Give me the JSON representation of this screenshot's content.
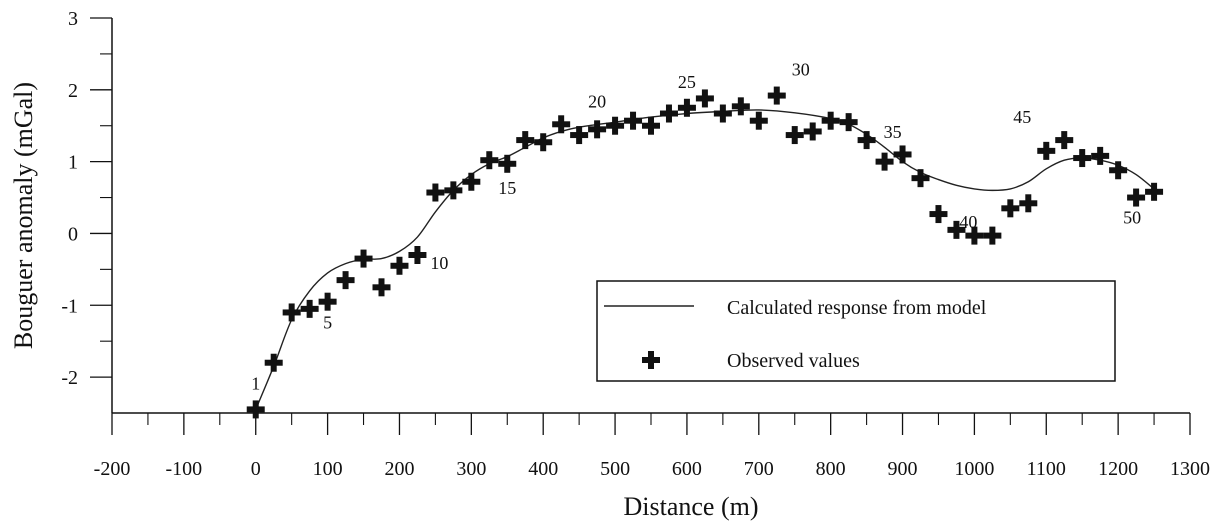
{
  "chart_data": {
    "type": "scatter",
    "xlabel": "Distance (m)",
    "ylabel": "Bouguer anomaly (mGal)",
    "xlim": [
      -200,
      1300
    ],
    "ylim": [
      -2.5,
      3
    ],
    "x_ticks": [
      "-200",
      "-100",
      "0",
      "100",
      "200",
      "300",
      "400",
      "500",
      "600",
      "700",
      "800",
      "900",
      "1000",
      "1100",
      "1200",
      "1300"
    ],
    "y_ticks": [
      "-2",
      "-1",
      "0",
      "1",
      "2",
      "3"
    ],
    "x_tick_values": [
      -200,
      -100,
      0,
      100,
      200,
      300,
      400,
      500,
      600,
      700,
      800,
      900,
      1000,
      1100,
      1200,
      1300
    ],
    "y_tick_values": [
      -2,
      -1,
      0,
      1,
      2,
      3
    ],
    "legend": {
      "placement": "bottom-right",
      "calculated_label": "Calculated response from model",
      "observed_label": "Observed values"
    },
    "series": [
      {
        "name": "Observed values",
        "style": "plus-marker",
        "points": [
          {
            "x": 0,
            "y": -2.45
          },
          {
            "x": 25,
            "y": -1.8
          },
          {
            "x": 50,
            "y": -1.1
          },
          {
            "x": 75,
            "y": -1.05
          },
          {
            "x": 100,
            "y": -0.95
          },
          {
            "x": 125,
            "y": -0.65
          },
          {
            "x": 150,
            "y": -0.35
          },
          {
            "x": 175,
            "y": -0.75
          },
          {
            "x": 200,
            "y": -0.45
          },
          {
            "x": 225,
            "y": -0.3
          },
          {
            "x": 250,
            "y": 0.57
          },
          {
            "x": 275,
            "y": 0.6
          },
          {
            "x": 300,
            "y": 0.72
          },
          {
            "x": 325,
            "y": 1.02
          },
          {
            "x": 350,
            "y": 0.97
          },
          {
            "x": 375,
            "y": 1.3
          },
          {
            "x": 400,
            "y": 1.27
          },
          {
            "x": 425,
            "y": 1.52
          },
          {
            "x": 450,
            "y": 1.37
          },
          {
            "x": 475,
            "y": 1.45
          },
          {
            "x": 500,
            "y": 1.5
          },
          {
            "x": 525,
            "y": 1.57
          },
          {
            "x": 550,
            "y": 1.5
          },
          {
            "x": 575,
            "y": 1.67
          },
          {
            "x": 600,
            "y": 1.75
          },
          {
            "x": 625,
            "y": 1.88
          },
          {
            "x": 650,
            "y": 1.67
          },
          {
            "x": 675,
            "y": 1.77
          },
          {
            "x": 700,
            "y": 1.57
          },
          {
            "x": 725,
            "y": 1.92
          },
          {
            "x": 750,
            "y": 1.37
          },
          {
            "x": 775,
            "y": 1.42
          },
          {
            "x": 800,
            "y": 1.57
          },
          {
            "x": 825,
            "y": 1.55
          },
          {
            "x": 850,
            "y": 1.3
          },
          {
            "x": 875,
            "y": 1.0
          },
          {
            "x": 900,
            "y": 1.1
          },
          {
            "x": 925,
            "y": 0.77
          },
          {
            "x": 950,
            "y": 0.27
          },
          {
            "x": 975,
            "y": 0.05
          },
          {
            "x": 1000,
            "y": -0.03
          },
          {
            "x": 1025,
            "y": -0.03
          },
          {
            "x": 1050,
            "y": 0.35
          },
          {
            "x": 1075,
            "y": 0.42
          },
          {
            "x": 1100,
            "y": 1.15
          },
          {
            "x": 1125,
            "y": 1.3
          },
          {
            "x": 1150,
            "y": 1.05
          },
          {
            "x": 1175,
            "y": 1.08
          },
          {
            "x": 1200,
            "y": 0.88
          },
          {
            "x": 1225,
            "y": 0.5
          },
          {
            "x": 1250,
            "y": 0.58
          }
        ]
      },
      {
        "name": "Calculated response from model",
        "style": "line",
        "points": [
          {
            "x": 0,
            "y": -2.45
          },
          {
            "x": 25,
            "y": -1.85
          },
          {
            "x": 50,
            "y": -1.2
          },
          {
            "x": 75,
            "y": -0.8
          },
          {
            "x": 100,
            "y": -0.55
          },
          {
            "x": 125,
            "y": -0.42
          },
          {
            "x": 150,
            "y": -0.36
          },
          {
            "x": 175,
            "y": -0.35
          },
          {
            "x": 200,
            "y": -0.25
          },
          {
            "x": 225,
            "y": -0.05
          },
          {
            "x": 250,
            "y": 0.3
          },
          {
            "x": 275,
            "y": 0.6
          },
          {
            "x": 300,
            "y": 0.82
          },
          {
            "x": 325,
            "y": 0.97
          },
          {
            "x": 350,
            "y": 1.07
          },
          {
            "x": 375,
            "y": 1.2
          },
          {
            "x": 400,
            "y": 1.33
          },
          {
            "x": 425,
            "y": 1.42
          },
          {
            "x": 450,
            "y": 1.48
          },
          {
            "x": 500,
            "y": 1.55
          },
          {
            "x": 550,
            "y": 1.62
          },
          {
            "x": 600,
            "y": 1.67
          },
          {
            "x": 650,
            "y": 1.7
          },
          {
            "x": 700,
            "y": 1.72
          },
          {
            "x": 750,
            "y": 1.68
          },
          {
            "x": 800,
            "y": 1.6
          },
          {
            "x": 825,
            "y": 1.52
          },
          {
            "x": 850,
            "y": 1.38
          },
          {
            "x": 875,
            "y": 1.2
          },
          {
            "x": 900,
            "y": 1.0
          },
          {
            "x": 925,
            "y": 0.85
          },
          {
            "x": 950,
            "y": 0.75
          },
          {
            "x": 975,
            "y": 0.67
          },
          {
            "x": 1000,
            "y": 0.62
          },
          {
            "x": 1025,
            "y": 0.6
          },
          {
            "x": 1050,
            "y": 0.62
          },
          {
            "x": 1075,
            "y": 0.72
          },
          {
            "x": 1100,
            "y": 0.9
          },
          {
            "x": 1125,
            "y": 1.02
          },
          {
            "x": 1150,
            "y": 1.05
          },
          {
            "x": 1175,
            "y": 1.02
          },
          {
            "x": 1200,
            "y": 0.95
          },
          {
            "x": 1225,
            "y": 0.82
          },
          {
            "x": 1250,
            "y": 0.62
          }
        ]
      }
    ],
    "point_labels": [
      {
        "text": "1",
        "x": 0,
        "y": -2.45
      },
      {
        "text": "5",
        "x": 100,
        "y": -0.95
      },
      {
        "text": "10",
        "x": 225,
        "y": -0.3
      },
      {
        "text": "15",
        "x": 350,
        "y": 0.97
      },
      {
        "text": "20",
        "x": 475,
        "y": 1.45
      },
      {
        "text": "25",
        "x": 600,
        "y": 1.75
      },
      {
        "text": "30",
        "x": 725,
        "y": 1.92
      },
      {
        "text": "35",
        "x": 850,
        "y": 1.3
      },
      {
        "text": "40",
        "x": 975,
        "y": 0.05
      },
      {
        "text": "45",
        "x": 1100,
        "y": 1.15
      },
      {
        "text": "50",
        "x": 1225,
        "y": 0.5
      }
    ]
  }
}
